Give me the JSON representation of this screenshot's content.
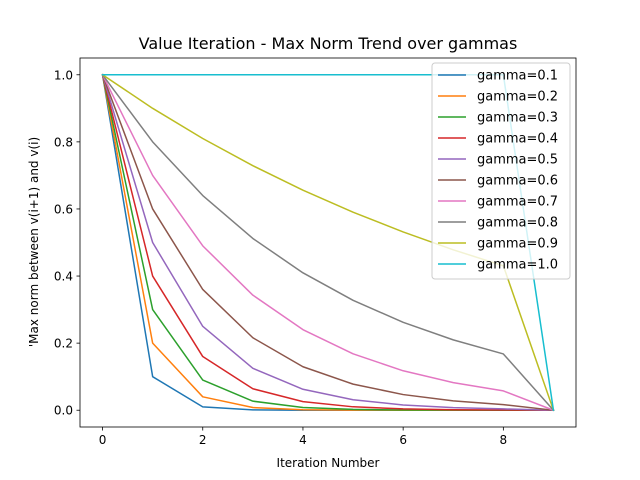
{
  "chart_data": {
    "type": "line",
    "title": "Value Iteration - Max Norm Trend over gammas",
    "xlabel": "Iteration Number",
    "ylabel": "'Max norm between v(i+1) and v(i)",
    "xlim": [
      -0.45,
      9.45
    ],
    "ylim": [
      -0.05,
      1.05
    ],
    "xticks": [
      "0",
      "2",
      "4",
      "6",
      "8"
    ],
    "xtick_values": [
      0,
      2,
      4,
      6,
      8
    ],
    "yticks": [
      "0.0",
      "0.2",
      "0.4",
      "0.6",
      "0.8",
      "1.0"
    ],
    "ytick_values": [
      0.0,
      0.2,
      0.4,
      0.6,
      0.8,
      1.0
    ],
    "grid": false,
    "legend_position": "top-right",
    "x": [
      0,
      1,
      2,
      3,
      4,
      5,
      6,
      7,
      8,
      9
    ],
    "series": [
      {
        "name": "gamma=0.1",
        "color": "#1f77b4",
        "values": [
          1.0,
          0.1,
          0.01,
          0.001,
          0.0001,
          0.0,
          0.0,
          0.0,
          0.0,
          0.0
        ]
      },
      {
        "name": "gamma=0.2",
        "color": "#ff7f0e",
        "values": [
          1.0,
          0.2,
          0.04,
          0.008,
          0.0016,
          0.0003,
          0.0001,
          0.0,
          0.0,
          0.0
        ]
      },
      {
        "name": "gamma=0.3",
        "color": "#2ca02c",
        "values": [
          1.0,
          0.3,
          0.09,
          0.027,
          0.0081,
          0.0024,
          0.0007,
          0.0002,
          0.0001,
          0.0
        ]
      },
      {
        "name": "gamma=0.4",
        "color": "#d62728",
        "values": [
          1.0,
          0.4,
          0.16,
          0.064,
          0.0256,
          0.0102,
          0.0041,
          0.0016,
          0.0007,
          0.0
        ]
      },
      {
        "name": "gamma=0.5",
        "color": "#9467bd",
        "values": [
          1.0,
          0.5,
          0.25,
          0.125,
          0.0625,
          0.0313,
          0.0156,
          0.0078,
          0.0039,
          0.0
        ]
      },
      {
        "name": "gamma=0.6",
        "color": "#8c564b",
        "values": [
          1.0,
          0.6,
          0.36,
          0.216,
          0.1296,
          0.0778,
          0.0467,
          0.028,
          0.0168,
          0.0
        ]
      },
      {
        "name": "gamma=0.7",
        "color": "#e377c2",
        "values": [
          1.0,
          0.7,
          0.49,
          0.343,
          0.2401,
          0.1681,
          0.1176,
          0.0824,
          0.0576,
          0.0
        ]
      },
      {
        "name": "gamma=0.8",
        "color": "#7f7f7f",
        "values": [
          1.0,
          0.8,
          0.64,
          0.512,
          0.4096,
          0.3277,
          0.2621,
          0.2097,
          0.1678,
          0.0
        ]
      },
      {
        "name": "gamma=0.9",
        "color": "#bcbd22",
        "values": [
          1.0,
          0.9,
          0.81,
          0.729,
          0.6561,
          0.5905,
          0.5314,
          0.4783,
          0.4305,
          0.0
        ]
      },
      {
        "name": "gamma=1.0",
        "color": "#17becf",
        "values": [
          1.0,
          1.0,
          1.0,
          1.0,
          1.0,
          1.0,
          1.0,
          1.0,
          1.0,
          0.0
        ]
      }
    ]
  }
}
